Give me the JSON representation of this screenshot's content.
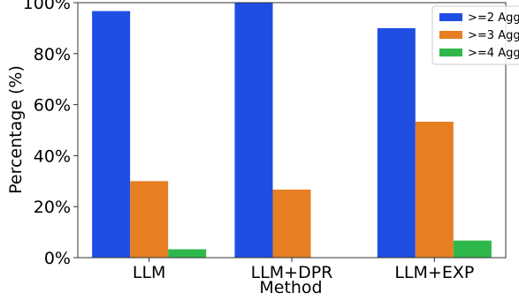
{
  "chart_data": {
    "type": "bar",
    "categories": [
      "LLM",
      "LLM+DPR",
      "LLM+EXP"
    ],
    "series": [
      {
        "name": ">=2 Agg",
        "values": [
          96.7,
          100.0,
          90.0
        ],
        "color": "#1f4ee3"
      },
      {
        "name": ">=3 Agg",
        "values": [
          30.0,
          26.7,
          53.3
        ],
        "color": "#e67e22"
      },
      {
        "name": ">=4 Agg",
        "values": [
          3.3,
          0.0,
          6.7
        ],
        "color": "#2eb84b"
      }
    ],
    "xlabel": "Method",
    "ylabel": "Percentage (%)",
    "ylim": [
      0,
      100
    ],
    "yticks": [
      0,
      20,
      40,
      60,
      80,
      100
    ],
    "ytick_labels": [
      "0%",
      "20%",
      "40%",
      "60%",
      "80%",
      "100%"
    ],
    "grid": false,
    "legend_position": "top-right"
  }
}
